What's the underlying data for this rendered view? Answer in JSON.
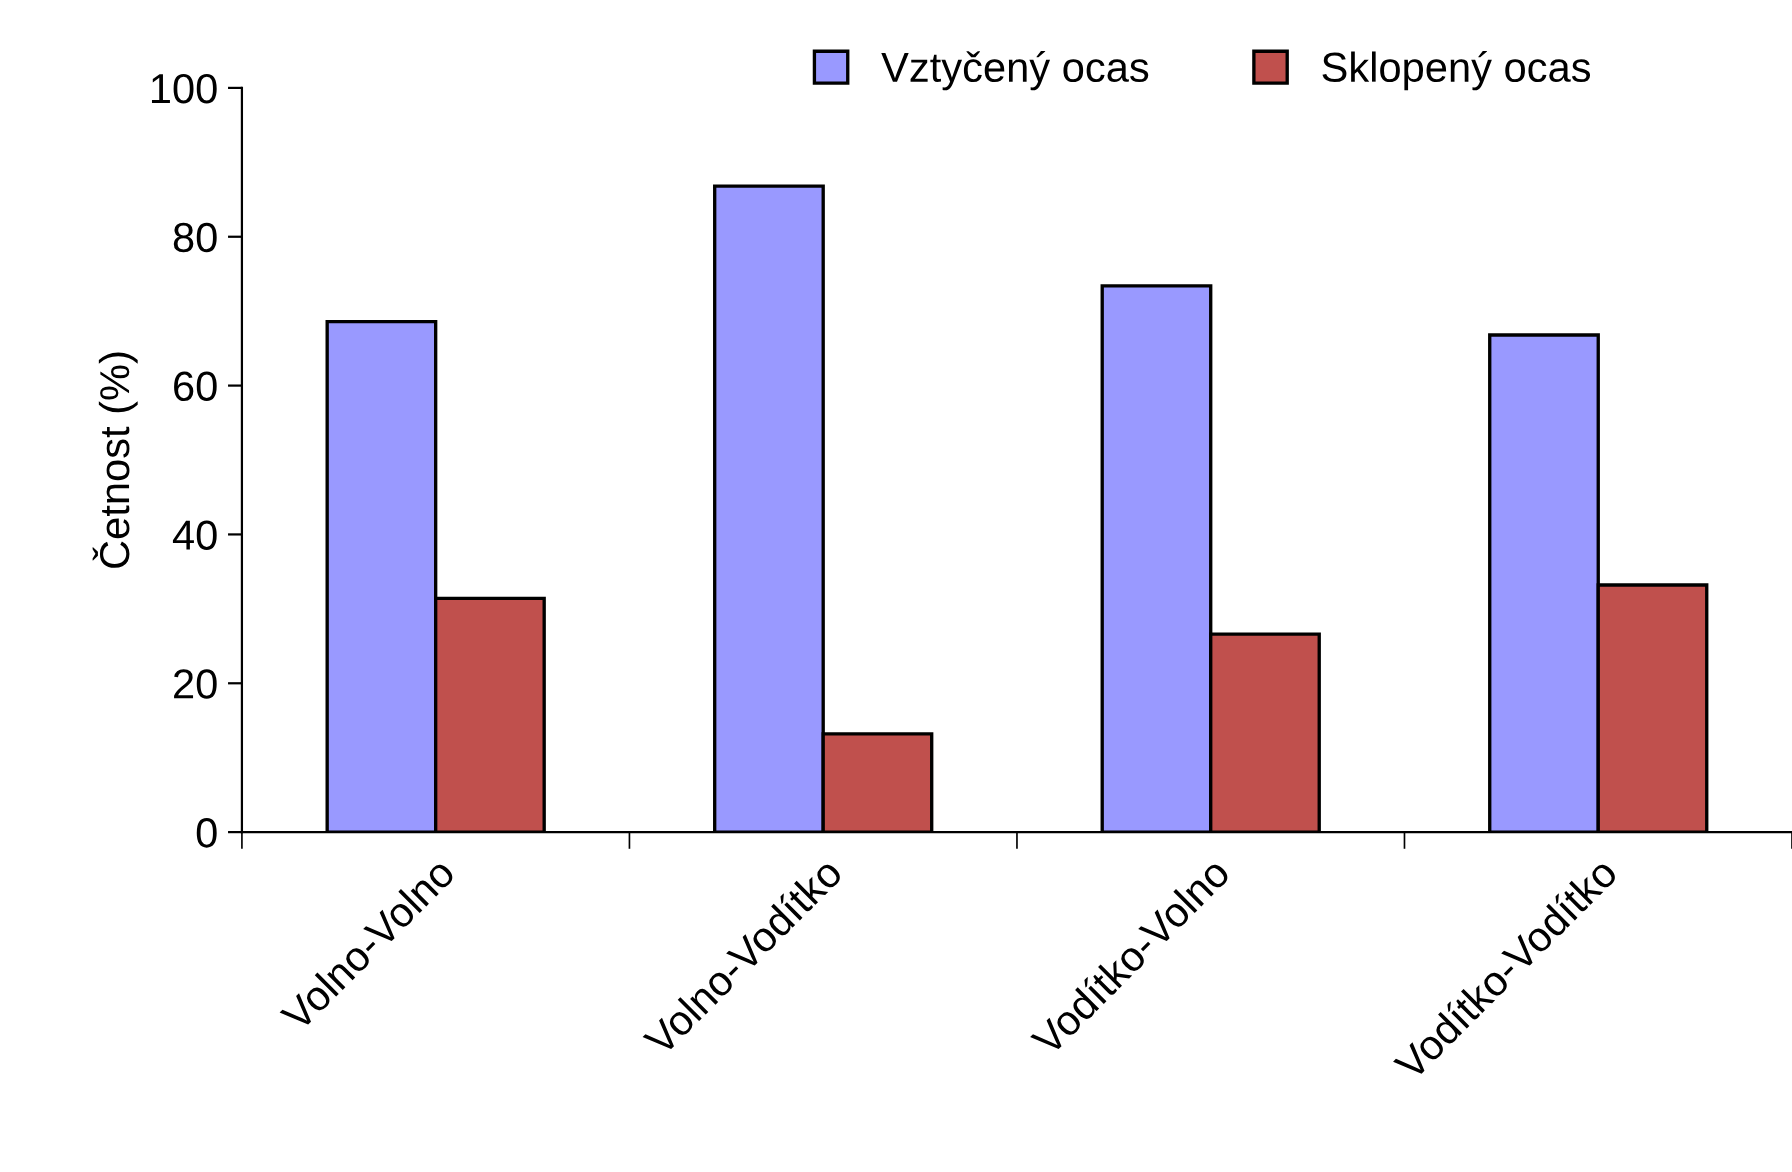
{
  "chart_data": {
    "type": "bar",
    "ylabel": "Četnost (%)",
    "categories": [
      "Volno-Volno",
      "Volno-Vodítko",
      "Vodítko-Volno",
      "Vodítko-Vodítko"
    ],
    "series": [
      {
        "name": "Vztyčený ocas",
        "color": "#9999ff",
        "values": [
          68.6,
          86.8,
          73.4,
          66.8
        ]
      },
      {
        "name": "Sklopený ocas",
        "color": "#c0504d",
        "values": [
          31.4,
          13.2,
          26.6,
          33.2
        ]
      }
    ],
    "ylim": [
      0,
      100
    ],
    "yticks": [
      0,
      20,
      40,
      60,
      80,
      100
    ],
    "grid": false,
    "legend": "top"
  }
}
